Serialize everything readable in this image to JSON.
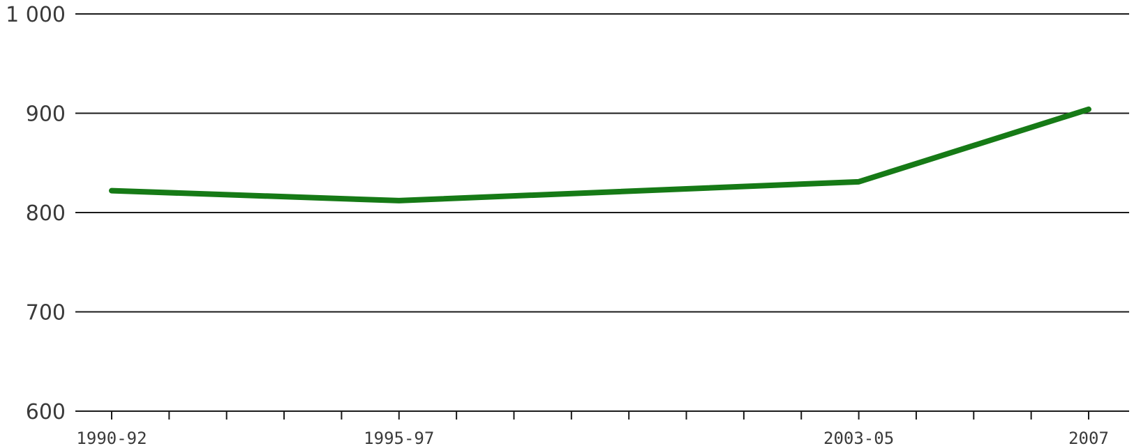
{
  "chart_data": {
    "type": "line",
    "x": [
      "1990-92",
      "1995-97",
      "2003-05",
      "2007"
    ],
    "x_positions": [
      1990,
      1995,
      2003,
      2007
    ],
    "xlim": [
      1990,
      2007
    ],
    "series": [
      {
        "values": [
          822,
          812,
          831,
          904
        ],
        "color": "#167a16"
      }
    ],
    "ylim": [
      600,
      1000
    ],
    "yticks": [
      600,
      700,
      800,
      900,
      1000
    ],
    "ytick_labels": [
      "600",
      "700",
      "800",
      "900",
      "1 000"
    ],
    "xlabels": [
      "1990-92",
      "1995-97",
      "2003-05",
      "2007"
    ],
    "xlabel": "",
    "ylabel": "",
    "title": "",
    "grid": true
  }
}
